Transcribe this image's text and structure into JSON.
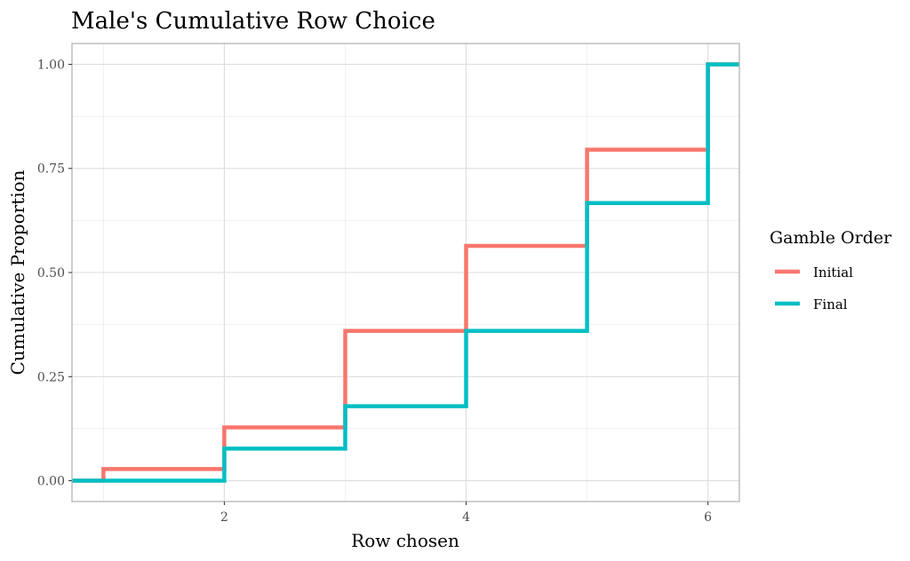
{
  "chart_data": {
    "type": "line",
    "step": true,
    "title": "Male's Cumulative Row Choice",
    "xlabel": "Row chosen",
    "ylabel": "Cumulative Proportion",
    "xlim": [
      0.74,
      6.26
    ],
    "ylim": [
      -0.05,
      1.05
    ],
    "x_ticks": [
      2,
      4,
      6
    ],
    "x_tick_labels": [
      "2",
      "4",
      "6"
    ],
    "y_ticks": [
      0,
      0.25,
      0.5,
      0.75,
      1.0
    ],
    "y_tick_labels": [
      "0.00",
      "0.25",
      "0.50",
      "0.75",
      "1.00"
    ],
    "grid": true,
    "legend": {
      "title": "Gamble Order",
      "position": "right"
    },
    "series": [
      {
        "name": "Initial",
        "color": "#F8766D",
        "x": [
          1,
          2,
          3,
          4,
          5,
          6
        ],
        "y": [
          0.028,
          0.128,
          0.36,
          0.564,
          0.795,
          1.0
        ]
      },
      {
        "name": "Final",
        "color": "#00BFC4",
        "x": [
          1,
          2,
          3,
          4,
          5,
          6
        ],
        "y": [
          0.0,
          0.077,
          0.179,
          0.36,
          0.667,
          1.0
        ]
      }
    ]
  }
}
